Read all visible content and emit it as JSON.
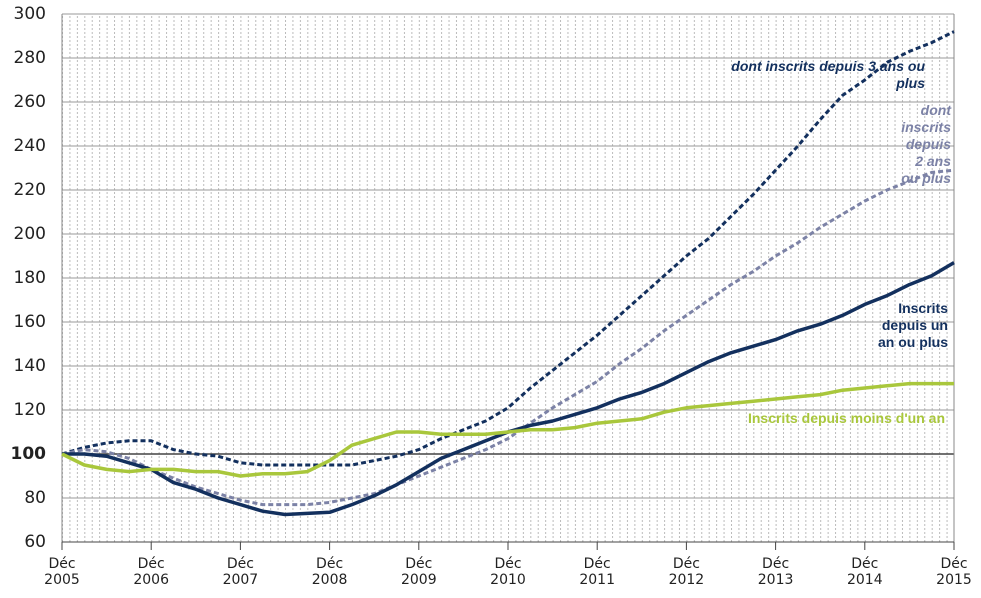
{
  "chart_data": {
    "type": "line",
    "x": [
      "2005-12",
      "2006-03",
      "2006-06",
      "2006-09",
      "2006-12",
      "2007-03",
      "2007-06",
      "2007-09",
      "2007-12",
      "2008-03",
      "2008-06",
      "2008-09",
      "2008-12",
      "2009-03",
      "2009-06",
      "2009-09",
      "2009-12",
      "2010-03",
      "2010-06",
      "2010-09",
      "2010-12",
      "2011-03",
      "2011-06",
      "2011-09",
      "2011-12",
      "2012-03",
      "2012-06",
      "2012-09",
      "2012-12",
      "2013-03",
      "2013-06",
      "2013-09",
      "2013-12",
      "2014-03",
      "2014-06",
      "2014-09",
      "2014-12",
      "2015-03",
      "2015-06",
      "2015-09",
      "2015-12"
    ],
    "xticks": [
      {
        "value": "2005-12",
        "label": "Déc 2005"
      },
      {
        "value": "2006-12",
        "label": "Déc 2006"
      },
      {
        "value": "2007-12",
        "label": "Déc 2007"
      },
      {
        "value": "2008-12",
        "label": "Déc 2008"
      },
      {
        "value": "2009-12",
        "label": "Déc 2009"
      },
      {
        "value": "2010-12",
        "label": "Déc 2010"
      },
      {
        "value": "2011-12",
        "label": "Déc 2011"
      },
      {
        "value": "2012-12",
        "label": "Déc 2012"
      },
      {
        "value": "2013-12",
        "label": "Déc 2013"
      },
      {
        "value": "2014-12",
        "label": "Déc 2014"
      },
      {
        "value": "2015-12",
        "label": "Déc 2015"
      }
    ],
    "ylim": [
      60,
      300
    ],
    "yticks": [
      60,
      80,
      100,
      120,
      140,
      160,
      180,
      200,
      220,
      240,
      260,
      280,
      300
    ],
    "reference_line": 100,
    "grid": true,
    "series": [
      {
        "name": "dont inscrits depuis 3 ans ou plus",
        "color": "#13305e",
        "dashed": true,
        "values": [
          100,
          103,
          105,
          106,
          106,
          102,
          100,
          99,
          96,
          95,
          95,
          95,
          95,
          95,
          97,
          99,
          102,
          107,
          111,
          115,
          121,
          130,
          138,
          146,
          154,
          163,
          172,
          181,
          190,
          198,
          208,
          218,
          229,
          240,
          252,
          263,
          270,
          278,
          283,
          287,
          292
        ]
      },
      {
        "name": "dont inscrits depuis 2 ans ou plus",
        "color": "#7c82a6",
        "dashed": true,
        "values": [
          100,
          102,
          101,
          98,
          93,
          89,
          85,
          82,
          79,
          77,
          77,
          77,
          78,
          80,
          82,
          86,
          90,
          94,
          98,
          102,
          107,
          114,
          121,
          127,
          133,
          141,
          148,
          156,
          163,
          170,
          177,
          183,
          190,
          196,
          203,
          209,
          215,
          220,
          224,
          228,
          229
        ]
      },
      {
        "name": "Inscrits depuis un an ou plus",
        "color": "#13305e",
        "dashed": false,
        "values": [
          100,
          100,
          99,
          96,
          93,
          87,
          84,
          80,
          77,
          74,
          72.5,
          73,
          73.5,
          77,
          81,
          86,
          92,
          98,
          102,
          106,
          110,
          113,
          115,
          118,
          121,
          125,
          128,
          132,
          137,
          142,
          146,
          149,
          152,
          156,
          159,
          163,
          168,
          172,
          177,
          181,
          187
        ]
      },
      {
        "name": "Inscrits depuis moins d'un an",
        "color": "#a9c73c",
        "dashed": false,
        "values": [
          100,
          95,
          93,
          92,
          93,
          93,
          92,
          92,
          90,
          91,
          91,
          92,
          97,
          104,
          107,
          110,
          110,
          109,
          109,
          109,
          110,
          111,
          111,
          112,
          114,
          115,
          116,
          119,
          121,
          122,
          123,
          124,
          125,
          126,
          127,
          129,
          130,
          131,
          132,
          132,
          132
        ]
      }
    ]
  }
}
